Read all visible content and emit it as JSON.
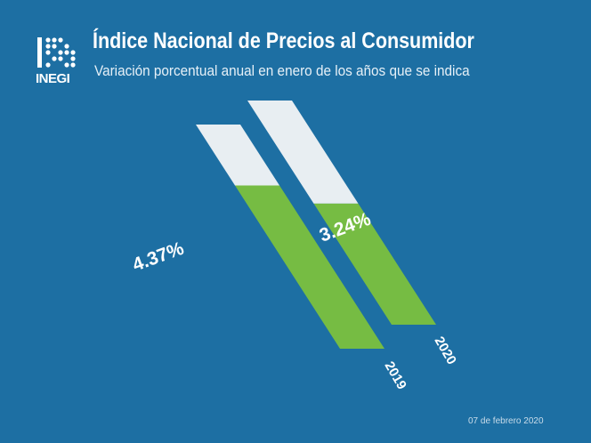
{
  "header": {
    "logo_text": "INEGI",
    "title": "Índice Nacional de Precios al Consumidor",
    "subtitle": "Variación porcentual anual en enero de los años que se indica"
  },
  "footer": {
    "date": "07 de febrero 2020"
  },
  "colors": {
    "background": "#1d6fa3",
    "bar_fill": "#76bc43",
    "bar_track": "#e8eef2",
    "text": "#ffffff"
  },
  "chart_data": {
    "type": "bar",
    "categories": [
      "2019",
      "2020"
    ],
    "values": [
      4.37,
      3.24
    ],
    "value_labels": [
      "4.37%",
      "3.24%"
    ],
    "ylim": [
      0,
      6
    ]
  }
}
